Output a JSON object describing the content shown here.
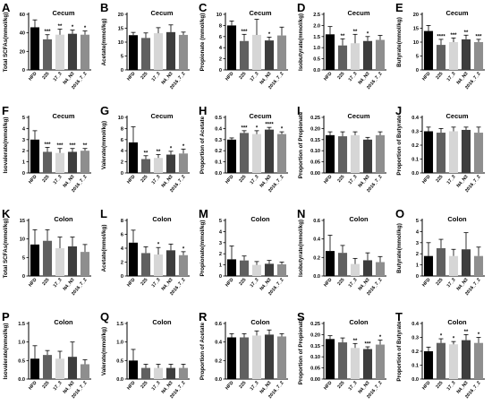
{
  "colors": {
    "HFD": "#000000",
    "225": "#606060",
    "17_3": "#d6d6d6",
    "N4_N3": "#3d3d3d",
    "2016_7_2": "#8e8e8e"
  },
  "chart_data": [
    {
      "type": "bar",
      "label": "A",
      "title": "Cecum",
      "ylabel": "Total SCFAs(mmol/kg)",
      "categories": [
        "HFD",
        "225",
        "17_3",
        "N4_N3",
        "2016_7_2"
      ],
      "values": [
        46,
        33,
        38,
        39,
        38
      ],
      "errors": [
        8,
        5,
        6,
        4,
        4
      ],
      "ylim": [
        0,
        60
      ],
      "yticks": [
        "0",
        "20",
        "40",
        "60"
      ],
      "sig": [
        "",
        "***",
        "**",
        "*",
        "*"
      ]
    },
    {
      "type": "bar",
      "label": "B",
      "title": "Cecum",
      "ylabel": "Acetate(mmol/kg)",
      "categories": [
        "HFD",
        "225",
        "17_3",
        "N4_N3",
        "2016_7_2"
      ],
      "values": [
        12.5,
        11.5,
        13.2,
        13.6,
        12.6
      ],
      "errors": [
        1.0,
        1.8,
        2.0,
        2.6,
        1.0
      ],
      "ylim": [
        0,
        20
      ],
      "yticks": [
        "0",
        "5",
        "10",
        "15",
        "20"
      ],
      "sig": [
        "",
        "",
        "",
        "",
        ""
      ]
    },
    {
      "type": "bar",
      "label": "C",
      "title": "Cecum",
      "ylabel": "Propionate (mmol/kg)",
      "categories": [
        "HFD",
        "225",
        "17_3",
        "N4_N3",
        "2016_7_2"
      ],
      "values": [
        8.0,
        5.2,
        6.3,
        5.3,
        6.2
      ],
      "errors": [
        0.8,
        1.2,
        2.8,
        0.6,
        1.5
      ],
      "ylim": [
        0,
        10
      ],
      "yticks": [
        "0",
        "2",
        "4",
        "6",
        "8",
        "10"
      ],
      "sig": [
        "",
        "***",
        "",
        "*",
        ""
      ]
    },
    {
      "type": "bar",
      "label": "D",
      "title": "Cecum",
      "ylabel": "Isobutyrate(mmol/kg)",
      "categories": [
        "HFD",
        "225",
        "17_3",
        "N4_N3",
        "2016_7_2"
      ],
      "values": [
        1.6,
        1.1,
        1.2,
        1.3,
        1.35
      ],
      "errors": [
        0.35,
        0.3,
        0.4,
        0.2,
        0.2
      ],
      "ylim": [
        0,
        2.5
      ],
      "yticks": [
        "0.0",
        "0.5",
        "1.0",
        "1.5",
        "2.0",
        "2.5"
      ],
      "sig": [
        "",
        "**",
        "**",
        "*",
        ""
      ]
    },
    {
      "type": "bar",
      "label": "E",
      "title": "Cecum",
      "ylabel": "Butyrate(mmol/kg)",
      "categories": [
        "HFD",
        "225",
        "17_3",
        "N4_N3",
        "2016_7_2"
      ],
      "values": [
        14,
        9,
        10,
        11,
        10
      ],
      "errors": [
        2,
        2,
        1.5,
        1.5,
        1
      ],
      "ylim": [
        0,
        20
      ],
      "yticks": [
        "0",
        "5",
        "10",
        "15",
        "20"
      ],
      "sig": [
        "",
        "****",
        "***",
        "**",
        "***"
      ]
    },
    {
      "type": "bar",
      "label": "F",
      "title": "Cecum",
      "ylabel": "Isovalerate(mmol/kg)",
      "categories": [
        "HFD",
        "225",
        "17_3",
        "N4_N3",
        "2016_7_2"
      ],
      "values": [
        3.0,
        1.9,
        1.8,
        1.9,
        2.0
      ],
      "errors": [
        0.8,
        0.4,
        0.4,
        0.3,
        0.2
      ],
      "ylim": [
        0,
        5
      ],
      "yticks": [
        "0",
        "1",
        "2",
        "3",
        "4",
        "5"
      ],
      "sig": [
        "",
        "***",
        "***",
        "***",
        "**"
      ]
    },
    {
      "type": "bar",
      "label": "G",
      "title": "Cecum",
      "ylabel": "Valerate(mmol/kg)",
      "categories": [
        "HFD",
        "225",
        "17_3",
        "N4_N3",
        "2016_7_2"
      ],
      "values": [
        5.5,
        2.5,
        2.7,
        3.3,
        3.5
      ],
      "errors": [
        2.8,
        0.6,
        0.6,
        0.6,
        0.8
      ],
      "ylim": [
        0,
        10
      ],
      "yticks": [
        "0",
        "2",
        "4",
        "6",
        "8",
        "10"
      ],
      "sig": [
        "",
        "**",
        "**",
        "*",
        "*"
      ]
    },
    {
      "type": "bar",
      "label": "H",
      "title": "Cecum",
      "ylabel": "Proportion of Acetate",
      "categories": [
        "HFD",
        "225",
        "17_3",
        "N4_N3",
        "2016_7_2"
      ],
      "values": [
        0.3,
        0.36,
        0.35,
        0.39,
        0.35
      ],
      "errors": [
        0.015,
        0.02,
        0.03,
        0.02,
        0.02
      ],
      "ylim": [
        0,
        0.5
      ],
      "yticks": [
        "0.0",
        "0.1",
        "0.2",
        "0.3",
        "0.4",
        "0.5"
      ],
      "sig": [
        "",
        "***",
        "*",
        "****",
        "*"
      ]
    },
    {
      "type": "bar",
      "label": "I",
      "title": "Cecum",
      "ylabel": "Proportion of Propionate",
      "categories": [
        "HFD",
        "225",
        "17_3",
        "N4_N3",
        "2016_7_2"
      ],
      "values": [
        0.17,
        0.165,
        0.17,
        0.15,
        0.17
      ],
      "errors": [
        0.015,
        0.02,
        0.015,
        0.01,
        0.015
      ],
      "ylim": [
        0,
        0.25
      ],
      "yticks": [
        "0.00",
        "0.05",
        "0.10",
        "0.15",
        "0.20",
        "0.25"
      ],
      "sig": [
        "",
        "",
        "",
        "",
        ""
      ]
    },
    {
      "type": "bar",
      "label": "J",
      "title": "Cecum",
      "ylabel": "Proportion of Butyrate",
      "categories": [
        "HFD",
        "225",
        "17_3",
        "N4_N3",
        "2016_7_2"
      ],
      "values": [
        0.3,
        0.29,
        0.3,
        0.31,
        0.29
      ],
      "errors": [
        0.03,
        0.03,
        0.03,
        0.02,
        0.04
      ],
      "ylim": [
        0,
        0.4
      ],
      "yticks": [
        "0.0",
        "0.1",
        "0.2",
        "0.3",
        "0.4"
      ],
      "sig": [
        "",
        "",
        "",
        "",
        ""
      ]
    },
    {
      "type": "bar",
      "label": "K",
      "title": "Colon",
      "ylabel": "Total SCFAs(mmol/kg)",
      "categories": [
        "HFD",
        "225",
        "17_3",
        "N4_N3",
        "2016_7_2"
      ],
      "values": [
        8.5,
        9.5,
        7.5,
        8,
        6.5
      ],
      "errors": [
        4,
        3,
        3,
        2.5,
        2
      ],
      "ylim": [
        0,
        15
      ],
      "yticks": [
        "0",
        "5",
        "10",
        "15"
      ],
      "sig": [
        "",
        "",
        "",
        "",
        ""
      ]
    },
    {
      "type": "bar",
      "label": "L",
      "title": "Colon",
      "ylabel": "Acetate(mmol/kg)",
      "categories": [
        "HFD",
        "225",
        "17_3",
        "N4_N3",
        "2016_7_2"
      ],
      "values": [
        4.8,
        3.3,
        3.1,
        3.7,
        3.0
      ],
      "errors": [
        1.8,
        0.9,
        1.0,
        0.9,
        0.5
      ],
      "ylim": [
        0,
        8
      ],
      "yticks": [
        "0",
        "2",
        "4",
        "6",
        "8"
      ],
      "sig": [
        "",
        "",
        "*",
        "",
        "*"
      ]
    },
    {
      "type": "bar",
      "label": "M",
      "title": "Colon",
      "ylabel": "Propionate(mmol/kg)",
      "categories": [
        "HFD",
        "225",
        "17_3",
        "N4_N3",
        "2016_7_2"
      ],
      "values": [
        1.5,
        1.4,
        1.0,
        1.1,
        1.05
      ],
      "errors": [
        1.2,
        0.4,
        0.3,
        0.3,
        0.2
      ],
      "ylim": [
        0,
        5
      ],
      "yticks": [
        "0",
        "1",
        "2",
        "3",
        "4",
        "5"
      ],
      "sig": [
        "",
        "",
        "",
        "",
        ""
      ]
    },
    {
      "type": "bar",
      "label": "N",
      "title": "Colon",
      "ylabel": "Isobutyrate(mmol/kg)",
      "categories": [
        "HFD",
        "225",
        "17_3",
        "N4_N3",
        "2016_7_2"
      ],
      "values": [
        0.27,
        0.25,
        0.13,
        0.17,
        0.15
      ],
      "errors": [
        0.17,
        0.08,
        0.06,
        0.08,
        0.06
      ],
      "ylim": [
        0,
        0.6
      ],
      "yticks": [
        "0.0",
        "0.2",
        "0.4",
        "0.6"
      ],
      "sig": [
        "",
        "",
        "",
        "",
        ""
      ]
    },
    {
      "type": "bar",
      "label": "O",
      "title": "Colon",
      "ylabel": "Butyrate(mmol/kg)",
      "categories": [
        "HFD",
        "225",
        "17_3",
        "N4_N3",
        "2016_7_2"
      ],
      "values": [
        1.8,
        2.5,
        1.8,
        2.4,
        1.8
      ],
      "errors": [
        1.2,
        0.8,
        0.6,
        1.5,
        0.8
      ],
      "ylim": [
        0,
        5
      ],
      "yticks": [
        "0",
        "1",
        "2",
        "3",
        "4",
        "5"
      ],
      "sig": [
        "",
        "",
        "",
        "",
        ""
      ]
    },
    {
      "type": "bar",
      "label": "P",
      "title": "Colon",
      "ylabel": "Isovalerate(mmol/kg)",
      "categories": [
        "HFD",
        "225",
        "17_3",
        "N4_N3",
        "2016_7_2"
      ],
      "values": [
        0.55,
        0.65,
        0.55,
        0.6,
        0.4
      ],
      "errors": [
        0.35,
        0.12,
        0.2,
        0.4,
        0.12
      ],
      "ylim": [
        0,
        1.5
      ],
      "yticks": [
        "0.0",
        "0.5",
        "1.0",
        "1.5"
      ],
      "sig": [
        "",
        "",
        "",
        "",
        ""
      ]
    },
    {
      "type": "bar",
      "label": "Q",
      "title": "Colon",
      "ylabel": "Valerate(mmol/kg)",
      "categories": [
        "HFD",
        "225",
        "17_3",
        "N4_N3",
        "2016_7_2"
      ],
      "values": [
        0.5,
        0.3,
        0.3,
        0.3,
        0.3
      ],
      "errors": [
        0.3,
        0.1,
        0.1,
        0.1,
        0.1
      ],
      "ylim": [
        0,
        1.5
      ],
      "yticks": [
        "0.0",
        "0.5",
        "1.0",
        "1.5"
      ],
      "sig": [
        "",
        "",
        "",
        "",
        ""
      ]
    },
    {
      "type": "bar",
      "label": "R",
      "title": "Colon",
      "ylabel": "Proportion of Acetate",
      "categories": [
        "HFD",
        "225",
        "17_3",
        "N4_N3",
        "2016_7_2"
      ],
      "values": [
        0.45,
        0.45,
        0.47,
        0.48,
        0.46
      ],
      "errors": [
        0.04,
        0.04,
        0.05,
        0.05,
        0.03
      ],
      "ylim": [
        0,
        0.6
      ],
      "yticks": [
        "0.0",
        "0.2",
        "0.4",
        "0.6"
      ],
      "sig": [
        "",
        "",
        "",
        "",
        ""
      ]
    },
    {
      "type": "bar",
      "label": "S",
      "title": "Colon",
      "ylabel": "Proportion of Propionate",
      "categories": [
        "HFD",
        "225",
        "17_3",
        "N4_N3",
        "2016_7_2"
      ],
      "values": [
        0.18,
        0.165,
        0.14,
        0.135,
        0.155
      ],
      "errors": [
        0.015,
        0.02,
        0.02,
        0.01,
        0.02
      ],
      "ylim": [
        0,
        0.25
      ],
      "yticks": [
        "0.00",
        "0.05",
        "0.10",
        "0.15",
        "0.20",
        "0.25"
      ],
      "sig": [
        "",
        "",
        "**",
        "***",
        "*"
      ]
    },
    {
      "type": "bar",
      "label": "T",
      "title": "Colon",
      "ylabel": "Proportion of Butyrate",
      "categories": [
        "HFD",
        "225",
        "17_3",
        "N4_N3",
        "2016_7_2"
      ],
      "values": [
        0.2,
        0.26,
        0.25,
        0.28,
        0.26
      ],
      "errors": [
        0.03,
        0.03,
        0.02,
        0.04,
        0.04
      ],
      "ylim": [
        0,
        0.4
      ],
      "yticks": [
        "0.0",
        "0.1",
        "0.2",
        "0.3",
        "0.4"
      ],
      "sig": [
        "",
        "*",
        "*",
        "**",
        "*"
      ]
    }
  ]
}
